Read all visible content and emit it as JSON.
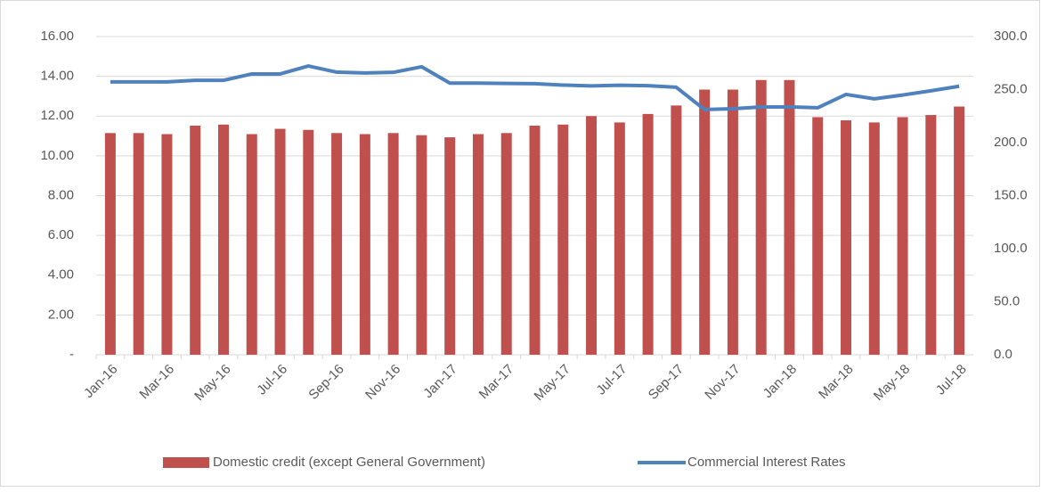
{
  "chart_data": {
    "type": "combo",
    "categories": [
      "Jan-16",
      null,
      "Mar-16",
      null,
      "May-16",
      null,
      "Jul-16",
      null,
      "Sep-16",
      null,
      "Nov-16",
      null,
      "Jan-17",
      null,
      "Mar-17",
      null,
      "May-17",
      null,
      "Jul-17",
      null,
      "Sep-17",
      null,
      "Nov-17",
      null,
      "Jan-18",
      null,
      "Mar-18",
      null,
      "May-18",
      null,
      "Jul-18"
    ],
    "series": [
      {
        "name": "Domestic credit (except General Government)",
        "type": "bar",
        "axis": "y2",
        "color": "#c0504d",
        "values": [
          209,
          209,
          208,
          216,
          217,
          208,
          213,
          212,
          209,
          208,
          209,
          207,
          205,
          208,
          209,
          216,
          217,
          225,
          219,
          227,
          235,
          250,
          250,
          259,
          259,
          224,
          221,
          219,
          224,
          226,
          234
        ]
      },
      {
        "name": "Commercial Interest Rates",
        "type": "line",
        "color": "#4f81bd",
        "values": [
          13.72,
          13.72,
          13.72,
          13.8,
          13.8,
          14.12,
          14.12,
          14.52,
          14.21,
          14.17,
          14.2,
          14.48,
          13.66,
          13.66,
          13.64,
          13.63,
          13.56,
          13.52,
          13.55,
          13.53,
          13.45,
          12.33,
          12.37,
          12.46,
          12.46,
          12.42,
          13.09,
          12.87,
          13.06,
          13.27,
          13.5
        ]
      }
    ],
    "ylim": [
      0,
      16
    ],
    "yticks": [
      {
        "value": 0,
        "label": "-"
      },
      {
        "value": 2,
        "label": "2.00"
      },
      {
        "value": 4,
        "label": "4.00"
      },
      {
        "value": 6,
        "label": "6.00"
      },
      {
        "value": 8,
        "label": "8.00"
      },
      {
        "value": 10,
        "label": "10.00"
      },
      {
        "value": 12,
        "label": "12.00"
      },
      {
        "value": 14,
        "label": "14.00"
      },
      {
        "value": 16,
        "label": "16.00"
      }
    ],
    "y2lim": [
      0,
      300
    ],
    "y2ticks": [
      {
        "value": 0,
        "label": "0.0"
      },
      {
        "value": 50,
        "label": "50.0"
      },
      {
        "value": 100,
        "label": "100.0"
      },
      {
        "value": 150,
        "label": "150.0"
      },
      {
        "value": 200,
        "label": "200.0"
      },
      {
        "value": 250,
        "label": "250.0"
      },
      {
        "value": 300,
        "label": "300.0"
      }
    ],
    "grid": true,
    "legend": "bottom"
  }
}
